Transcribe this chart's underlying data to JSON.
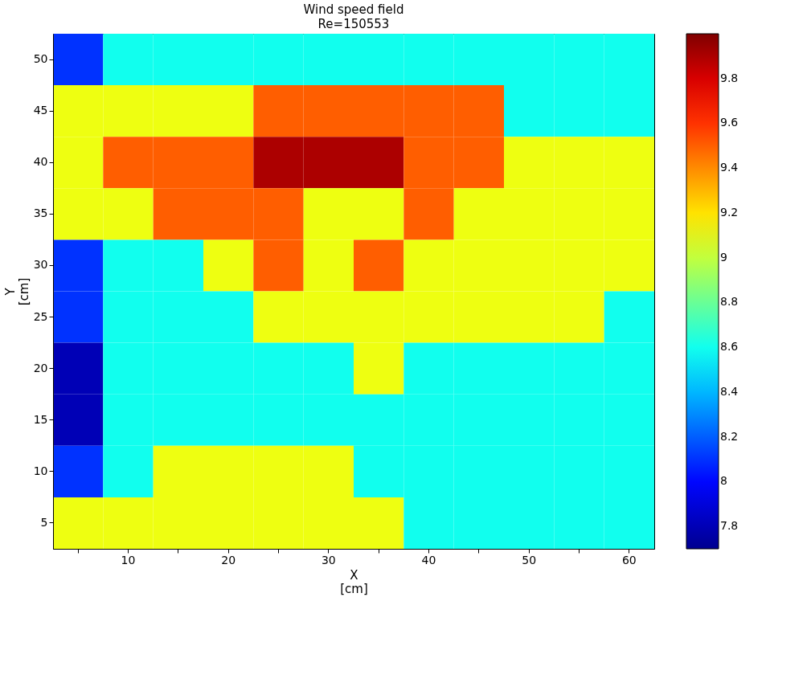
{
  "chart_data": {
    "type": "heatmap",
    "title": "Wind speed field",
    "subtitle": "Re=150553",
    "xlabel": "X\n[cm]",
    "ylabel": "Y\n[cm]",
    "categories": [
      null,
      "10",
      null,
      "20",
      null,
      "30",
      null,
      "40",
      null,
      "50",
      null,
      "60"
    ],
    "y_categories": [
      "50",
      "45",
      "40",
      "35",
      "30",
      "25",
      "20",
      "15",
      "10",
      "5"
    ],
    "cells": [
      [
        8.1,
        8.6,
        8.6,
        8.6,
        8.6,
        8.6,
        8.6,
        8.6,
        8.6,
        8.6,
        8.6,
        8.6
      ],
      [
        9.1,
        9.1,
        9.1,
        9.1,
        9.5,
        9.5,
        9.5,
        9.5,
        9.5,
        8.6,
        8.6,
        8.6
      ],
      [
        9.1,
        9.5,
        9.5,
        9.5,
        9.9,
        9.9,
        9.9,
        9.5,
        9.5,
        9.1,
        9.1,
        9.1
      ],
      [
        9.1,
        9.1,
        9.5,
        9.5,
        9.5,
        9.1,
        9.1,
        9.5,
        9.1,
        9.1,
        9.1,
        9.1
      ],
      [
        8.1,
        8.6,
        8.6,
        9.1,
        9.5,
        9.1,
        9.5,
        9.1,
        9.1,
        9.1,
        9.1,
        9.1
      ],
      [
        8.1,
        8.6,
        8.6,
        8.6,
        9.1,
        9.1,
        9.1,
        9.1,
        9.1,
        9.1,
        9.1,
        8.6
      ],
      [
        7.8,
        8.6,
        8.6,
        8.6,
        8.6,
        8.6,
        9.1,
        8.6,
        8.6,
        8.6,
        8.6,
        8.6
      ],
      [
        7.8,
        8.6,
        8.6,
        8.6,
        8.6,
        8.6,
        8.6,
        8.6,
        8.6,
        8.6,
        8.6,
        8.6
      ],
      [
        8.1,
        8.6,
        9.1,
        9.1,
        9.1,
        9.1,
        8.6,
        8.6,
        8.6,
        8.6,
        8.6,
        8.6
      ],
      [
        9.1,
        9.1,
        9.1,
        9.1,
        9.1,
        9.1,
        9.1,
        8.6,
        8.6,
        8.6,
        8.6,
        8.6
      ]
    ],
    "clim": [
      7.7,
      10.0
    ],
    "cticks": [
      7.8,
      8,
      8.2,
      8.4,
      8.6,
      8.8,
      9,
      9.2,
      9.4,
      9.6,
      9.8
    ],
    "grid": false
  }
}
